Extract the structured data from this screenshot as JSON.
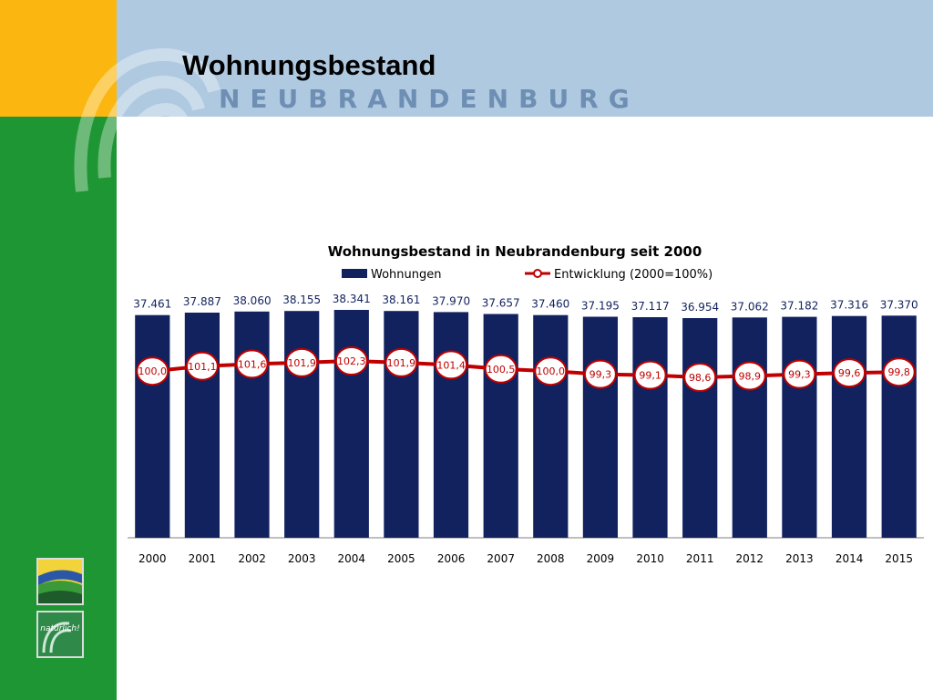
{
  "header": {
    "title": "Wohnungsbestand",
    "city": "NEUBRANDENBURG",
    "colors": {
      "orange": "#fbb710",
      "green": "#1f9634",
      "blue": "#afc9e1",
      "city_text": "#6e8fb3"
    }
  },
  "logo_text": "natürlich!",
  "chart_data": {
    "type": "bar",
    "title": "Wohnungsbestand in Neubrandenburg seit 2000",
    "legend_position": "top",
    "categories": [
      "2000",
      "2001",
      "2002",
      "2003",
      "2004",
      "2005",
      "2006",
      "2007",
      "2008",
      "2009",
      "2010",
      "2011",
      "2012",
      "2013",
      "2014",
      "2015"
    ],
    "series": [
      {
        "name": "Wohnungen",
        "type": "bar",
        "color": "#12225f",
        "values": [
          37461,
          37887,
          38060,
          38155,
          38341,
          38161,
          37970,
          37657,
          37460,
          37195,
          37117,
          36954,
          37062,
          37182,
          37316,
          37370
        ],
        "labels": [
          "37.461",
          "37.887",
          "38.060",
          "38.155",
          "38.341",
          "38.161",
          "37.970",
          "37.657",
          "37.460",
          "37.195",
          "37.117",
          "36.954",
          "37.062",
          "37.182",
          "37.316",
          "37.370"
        ]
      },
      {
        "name": "Entwicklung (2000=100%)",
        "type": "line",
        "color": "#c00000",
        "values": [
          100.0,
          101.1,
          101.6,
          101.9,
          102.3,
          101.9,
          101.4,
          100.5,
          100.0,
          99.3,
          99.1,
          98.6,
          98.9,
          99.3,
          99.6,
          99.8
        ],
        "labels": [
          "100,0",
          "101,1",
          "101,6",
          "101,9",
          "102,3",
          "101,9",
          "101,4",
          "100,5",
          "100,0",
          "99,3",
          "99,1",
          "98,6",
          "98,9",
          "99,3",
          "99,6",
          "99,8"
        ]
      }
    ],
    "grid": false
  }
}
